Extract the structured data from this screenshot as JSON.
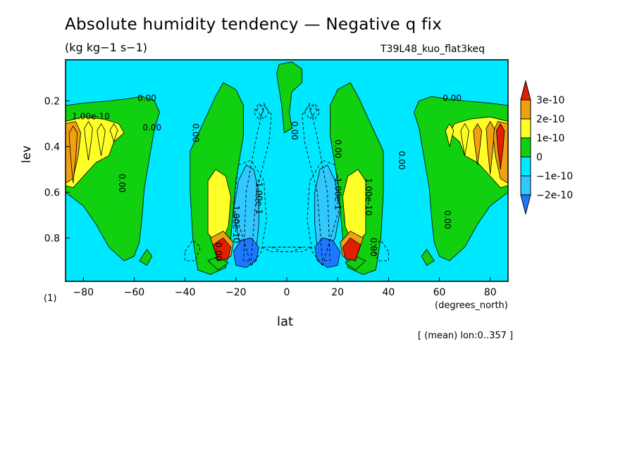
{
  "header": {
    "title": "Absolute humidity tendency — Negative q fix",
    "units": "(kg kg−1 s−1)",
    "run_name": "T39L48_kuo_flat3keq"
  },
  "axes": {
    "xlabel": "lat",
    "xunits": "(degrees_north)",
    "ylabel": "lev",
    "corner_label": "(1)",
    "footer": "[ (mean) lon:0..357 ]"
  },
  "colors": {
    "fill_neg2": "#1e78ff",
    "fill_neg1": "#30c8ff",
    "background": "#00e8ff",
    "fill_0": "#10d010",
    "fill_1": "#ffff28",
    "fill_2": "#f0a010",
    "fill_3": "#e02000",
    "line": "#000000"
  },
  "chart_data": {
    "type": "contour",
    "x": {
      "label": "lat",
      "range": [
        -87,
        87
      ],
      "ticks": [
        -80,
        -60,
        -40,
        -20,
        0,
        20,
        40,
        60,
        80
      ],
      "tick_labels": [
        "−80",
        "−60",
        "−40",
        "−20",
        "0",
        "20",
        "40",
        "60",
        "80"
      ]
    },
    "y": {
      "label": "lev",
      "range": [
        0.02,
        0.99
      ],
      "inverted": true,
      "ticks": [
        0.2,
        0.4,
        0.6,
        0.8
      ],
      "tick_labels": [
        "0.2",
        "0.4",
        "0.6",
        "0.8"
      ]
    },
    "colorbar": {
      "levels": [
        "3e-10",
        "2e-10",
        "1e-10",
        "0",
        "−1e-10",
        "−2e-10"
      ],
      "colors": [
        "#e02000",
        "#f0a010",
        "#ffff28",
        "#10d010",
        "#00e8ff",
        "#30c8ff",
        "#1e78ff"
      ]
    },
    "contour_labels": [
      {
        "text": "0.00",
        "lat": -55,
        "lev": 0.2
      },
      {
        "text": "1.00e-10",
        "lat": -77,
        "lev": 0.28
      },
      {
        "text": "0.00",
        "lat": -53,
        "lev": 0.33
      },
      {
        "text": "0.00",
        "lat": -37,
        "lev": 0.34
      },
      {
        "text": "0.00",
        "lat": -66,
        "lev": 0.56
      },
      {
        "text": "1.00e-10",
        "lat": -21,
        "lev": 0.74
      },
      {
        "text": "-1.00e-1",
        "lat": -12,
        "lev": 0.62
      },
      {
        "text": "0.00",
        "lat": -28,
        "lev": 0.86
      },
      {
        "text": "0.00",
        "lat": 2,
        "lev": 0.33
      },
      {
        "text": "0.00",
        "lat": 19,
        "lev": 0.41
      },
      {
        "text": "-1.00e-1",
        "lat": 19,
        "lev": 0.6
      },
      {
        "text": "1.00e-10",
        "lat": 31,
        "lev": 0.62
      },
      {
        "text": "0.00",
        "lat": 33,
        "lev": 0.84
      },
      {
        "text": "0.00",
        "lat": 44,
        "lev": 0.46
      },
      {
        "text": "0.00",
        "lat": 65,
        "lev": 0.2
      },
      {
        "text": "0.00",
        "lat": 62,
        "lev": 0.72
      }
    ]
  }
}
